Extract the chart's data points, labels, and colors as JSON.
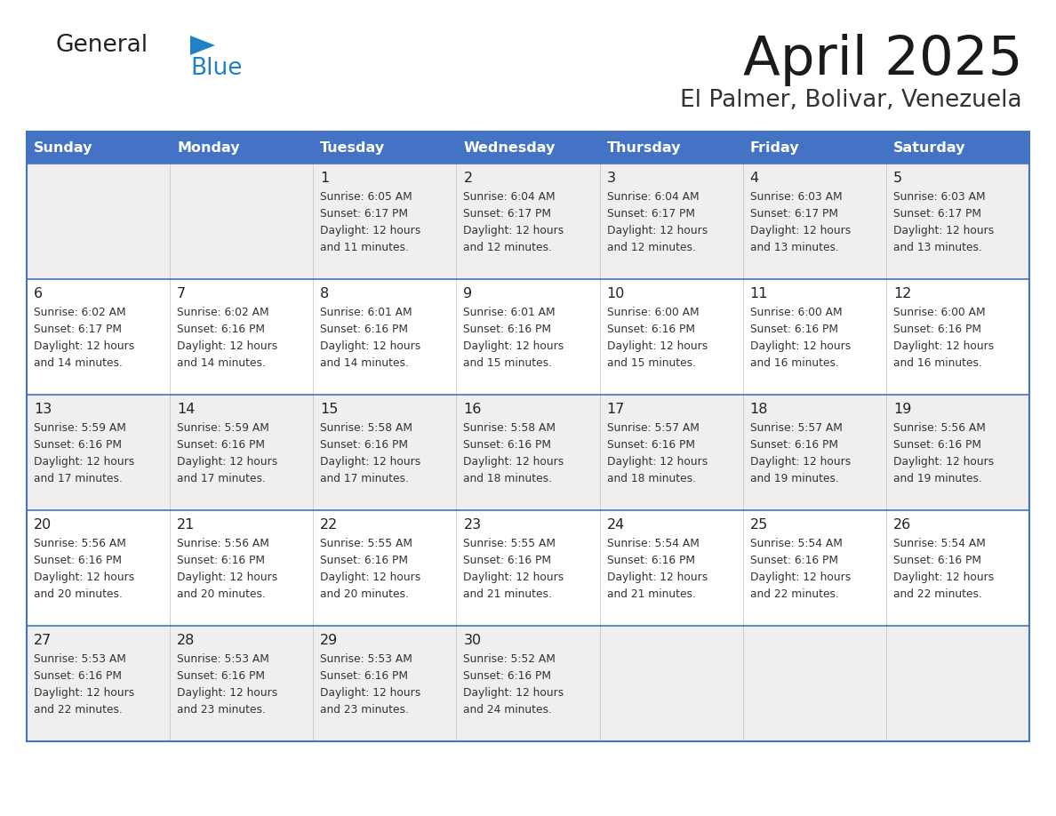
{
  "title": "April 2025",
  "subtitle": "El Palmer, Bolivar, Venezuela",
  "days_of_week": [
    "Sunday",
    "Monday",
    "Tuesday",
    "Wednesday",
    "Thursday",
    "Friday",
    "Saturday"
  ],
  "header_bg": "#4472C4",
  "header_text": "#FFFFFF",
  "row_bg_odd": "#EFEFEF",
  "row_bg_even": "#FFFFFF",
  "border_color": "#4472C4",
  "text_color": "#333333",
  "calendar": [
    [
      {
        "day": "",
        "sunrise": "",
        "sunset": "",
        "daylight": ""
      },
      {
        "day": "",
        "sunrise": "",
        "sunset": "",
        "daylight": ""
      },
      {
        "day": "1",
        "sunrise": "6:05 AM",
        "sunset": "6:17 PM",
        "daylight": "12 hours and 11 minutes."
      },
      {
        "day": "2",
        "sunrise": "6:04 AM",
        "sunset": "6:17 PM",
        "daylight": "12 hours and 12 minutes."
      },
      {
        "day": "3",
        "sunrise": "6:04 AM",
        "sunset": "6:17 PM",
        "daylight": "12 hours and 12 minutes."
      },
      {
        "day": "4",
        "sunrise": "6:03 AM",
        "sunset": "6:17 PM",
        "daylight": "12 hours and 13 minutes."
      },
      {
        "day": "5",
        "sunrise": "6:03 AM",
        "sunset": "6:17 PM",
        "daylight": "12 hours and 13 minutes."
      }
    ],
    [
      {
        "day": "6",
        "sunrise": "6:02 AM",
        "sunset": "6:17 PM",
        "daylight": "12 hours and 14 minutes."
      },
      {
        "day": "7",
        "sunrise": "6:02 AM",
        "sunset": "6:16 PM",
        "daylight": "12 hours and 14 minutes."
      },
      {
        "day": "8",
        "sunrise": "6:01 AM",
        "sunset": "6:16 PM",
        "daylight": "12 hours and 14 minutes."
      },
      {
        "day": "9",
        "sunrise": "6:01 AM",
        "sunset": "6:16 PM",
        "daylight": "12 hours and 15 minutes."
      },
      {
        "day": "10",
        "sunrise": "6:00 AM",
        "sunset": "6:16 PM",
        "daylight": "12 hours and 15 minutes."
      },
      {
        "day": "11",
        "sunrise": "6:00 AM",
        "sunset": "6:16 PM",
        "daylight": "12 hours and 16 minutes."
      },
      {
        "day": "12",
        "sunrise": "6:00 AM",
        "sunset": "6:16 PM",
        "daylight": "12 hours and 16 minutes."
      }
    ],
    [
      {
        "day": "13",
        "sunrise": "5:59 AM",
        "sunset": "6:16 PM",
        "daylight": "12 hours and 17 minutes."
      },
      {
        "day": "14",
        "sunrise": "5:59 AM",
        "sunset": "6:16 PM",
        "daylight": "12 hours and 17 minutes."
      },
      {
        "day": "15",
        "sunrise": "5:58 AM",
        "sunset": "6:16 PM",
        "daylight": "12 hours and 17 minutes."
      },
      {
        "day": "16",
        "sunrise": "5:58 AM",
        "sunset": "6:16 PM",
        "daylight": "12 hours and 18 minutes."
      },
      {
        "day": "17",
        "sunrise": "5:57 AM",
        "sunset": "6:16 PM",
        "daylight": "12 hours and 18 minutes."
      },
      {
        "day": "18",
        "sunrise": "5:57 AM",
        "sunset": "6:16 PM",
        "daylight": "12 hours and 19 minutes."
      },
      {
        "day": "19",
        "sunrise": "5:56 AM",
        "sunset": "6:16 PM",
        "daylight": "12 hours and 19 minutes."
      }
    ],
    [
      {
        "day": "20",
        "sunrise": "5:56 AM",
        "sunset": "6:16 PM",
        "daylight": "12 hours and 20 minutes."
      },
      {
        "day": "21",
        "sunrise": "5:56 AM",
        "sunset": "6:16 PM",
        "daylight": "12 hours and 20 minutes."
      },
      {
        "day": "22",
        "sunrise": "5:55 AM",
        "sunset": "6:16 PM",
        "daylight": "12 hours and 20 minutes."
      },
      {
        "day": "23",
        "sunrise": "5:55 AM",
        "sunset": "6:16 PM",
        "daylight": "12 hours and 21 minutes."
      },
      {
        "day": "24",
        "sunrise": "5:54 AM",
        "sunset": "6:16 PM",
        "daylight": "12 hours and 21 minutes."
      },
      {
        "day": "25",
        "sunrise": "5:54 AM",
        "sunset": "6:16 PM",
        "daylight": "12 hours and 22 minutes."
      },
      {
        "day": "26",
        "sunrise": "5:54 AM",
        "sunset": "6:16 PM",
        "daylight": "12 hours and 22 minutes."
      }
    ],
    [
      {
        "day": "27",
        "sunrise": "5:53 AM",
        "sunset": "6:16 PM",
        "daylight": "12 hours and 22 minutes."
      },
      {
        "day": "28",
        "sunrise": "5:53 AM",
        "sunset": "6:16 PM",
        "daylight": "12 hours and 23 minutes."
      },
      {
        "day": "29",
        "sunrise": "5:53 AM",
        "sunset": "6:16 PM",
        "daylight": "12 hours and 23 minutes."
      },
      {
        "day": "30",
        "sunrise": "5:52 AM",
        "sunset": "6:16 PM",
        "daylight": "12 hours and 24 minutes."
      },
      {
        "day": "",
        "sunrise": "",
        "sunset": "",
        "daylight": ""
      },
      {
        "day": "",
        "sunrise": "",
        "sunset": "",
        "daylight": ""
      },
      {
        "day": "",
        "sunrise": "",
        "sunset": "",
        "daylight": ""
      }
    ]
  ],
  "logo_general_color": "#222222",
  "logo_blue_color": "#2080C8",
  "logo_triangle_color": "#2080C8"
}
